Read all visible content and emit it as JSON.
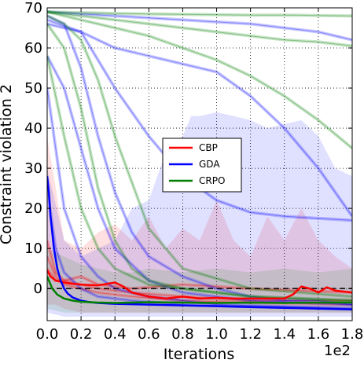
{
  "chart_data": {
    "type": "line",
    "title": "",
    "xlabel": "Iterations",
    "ylabel": "Constraint violation 2",
    "x_offset_text": "1e2",
    "xlim": [
      0,
      1.8
    ],
    "ylim": [
      -8,
      70
    ],
    "x_ticks": [
      "0.0",
      "0.2",
      "0.4",
      "0.6",
      "0.8",
      "1.0",
      "1.2",
      "1.4",
      "1.6",
      "1.8"
    ],
    "y_ticks": [
      "0",
      "10",
      "20",
      "30",
      "40",
      "50",
      "60",
      "70"
    ],
    "grid": true,
    "legend_position": "center",
    "reference_line": {
      "y": 0,
      "style": "dashed",
      "color": "#000000"
    },
    "series": [
      {
        "name": "CBP",
        "color": "#ff0000",
        "mean": {
          "x": [
            0,
            0.02,
            0.05,
            0.1,
            0.15,
            0.2,
            0.3,
            0.4,
            0.45,
            0.5,
            0.6,
            0.7,
            0.8,
            0.9,
            1.0,
            1.1,
            1.2,
            1.3,
            1.4,
            1.45,
            1.5,
            1.55,
            1.6,
            1.65,
            1.7,
            1.8
          ],
          "y": [
            4.5,
            3,
            2,
            1.5,
            1.2,
            1,
            0.8,
            1.5,
            0.5,
            -1,
            -2,
            -2.5,
            -2,
            -2.5,
            -2.3,
            -2.5,
            -2.5,
            -2.5,
            -2.5,
            -1.5,
            0.5,
            0,
            -1,
            0.3,
            -0.5,
            -1
          ]
        },
        "runs": [
          {
            "x": [
              0,
              0.05,
              0.1,
              0.2,
              0.3,
              0.5,
              0.8,
              1.2,
              1.8
            ],
            "y": [
              12,
              4,
              2,
              1,
              0,
              -1,
              -2,
              -3,
              -3
            ]
          },
          {
            "x": [
              0,
              0.05,
              0.1,
              0.2,
              0.3,
              0.5,
              0.8,
              1.2,
              1.8
            ],
            "y": [
              8,
              3,
              1,
              0,
              -1,
              -2,
              -3,
              -3.5,
              -4
            ]
          },
          {
            "x": [
              0,
              0.05,
              0.1,
              0.2,
              0.3,
              0.5,
              0.8,
              1.2,
              1.8
            ],
            "y": [
              5,
              2,
              2,
              3,
              1,
              0,
              1,
              0,
              -1
            ]
          }
        ],
        "band": {
          "x": [
            0,
            0.05,
            0.1,
            0.2,
            0.3,
            0.4,
            0.5,
            0.6,
            0.7,
            0.8,
            0.9,
            1.0,
            1.1,
            1.2,
            1.3,
            1.4,
            1.5,
            1.6,
            1.7,
            1.8
          ],
          "upper": [
            38,
            25,
            12,
            10,
            14,
            16,
            12,
            18,
            10,
            15,
            12,
            22,
            12,
            8,
            18,
            12,
            20,
            12,
            8,
            5
          ],
          "lower": [
            -4,
            -4,
            -5,
            -6,
            -6,
            -6,
            -6,
            -6,
            -6,
            -6,
            -6,
            -6,
            -6,
            -6,
            -6,
            -6,
            -6,
            -6,
            -6,
            -6
          ]
        }
      },
      {
        "name": "GDA",
        "color": "#0000ff",
        "mean": {
          "x": [
            0,
            0.01,
            0.02,
            0.04,
            0.06,
            0.08,
            0.1,
            0.12,
            0.15,
            0.2,
            0.25,
            0.3,
            0.4,
            0.6,
            0.8,
            1.0,
            1.2,
            1.4,
            1.6,
            1.8
          ],
          "y": [
            28,
            24,
            18,
            10,
            5,
            2,
            0,
            -1.2,
            -2.2,
            -3,
            -3.4,
            -3.6,
            -3.8,
            -4,
            -4.2,
            -4.4,
            -4.6,
            -4.8,
            -5,
            -5.2
          ]
        },
        "runs": [
          {
            "x": [
              0,
              0.1,
              0.2,
              0.3,
              0.4,
              0.5,
              0.6,
              0.8,
              1.0,
              1.2,
              1.4,
              1.6,
              1.8
            ],
            "y": [
              68,
              66,
              55,
              38,
              24,
              14,
              8,
              3,
              0,
              -2,
              -3,
              -3,
              -4
            ]
          },
          {
            "x": [
              0,
              0.2,
              0.4,
              0.6,
              0.8,
              1.0,
              1.2,
              1.4,
              1.6,
              1.8
            ],
            "y": [
              66,
              64,
              50,
              38,
              28,
              22,
              19,
              18,
              17.5,
              17
            ]
          },
          {
            "x": [
              0,
              0.2,
              0.4,
              0.6,
              0.8,
              1.0,
              1.2,
              1.4,
              1.6,
              1.8
            ],
            "y": [
              69,
              68.5,
              68,
              67.5,
              67,
              66.5,
              66,
              65,
              64,
              62
            ]
          },
          {
            "x": [
              0,
              0.2,
              0.4,
              0.6,
              0.8,
              1.0,
              1.2,
              1.4,
              1.6,
              1.8
            ],
            "y": [
              67,
              64,
              60,
              58,
              56,
              54,
              48,
              40,
              30,
              18
            ]
          },
          {
            "x": [
              0,
              0.05,
              0.1,
              0.2,
              0.3,
              0.4,
              0.6,
              0.8,
              1.0,
              1.4,
              1.8
            ],
            "y": [
              50,
              35,
              20,
              8,
              3,
              0,
              -2,
              -3,
              -4,
              -4.5,
              -5
            ]
          },
          {
            "x": [
              0,
              0.05,
              0.1,
              0.2,
              0.3,
              0.5,
              0.8,
              1.2,
              1.8
            ],
            "y": [
              25,
              10,
              4,
              0,
              -2,
              -3,
              -4,
              -4.5,
              -5
            ]
          },
          {
            "x": [
              0,
              0.1,
              0.2,
              0.3,
              0.4,
              0.6,
              0.8,
              1.2,
              1.8
            ],
            "y": [
              58,
              50,
              35,
              20,
              10,
              2,
              -1,
              -3,
              -4
            ]
          }
        ],
        "band": {
          "x": [
            0,
            0.1,
            0.2,
            0.3,
            0.4,
            0.5,
            0.6,
            0.7,
            0.8,
            0.85,
            0.9,
            1.0,
            1.1,
            1.2,
            1.3,
            1.4,
            1.5,
            1.6,
            1.7,
            1.8
          ],
          "upper": [
            30,
            12,
            8,
            10,
            12,
            20,
            22,
            34,
            38,
            43,
            43,
            44,
            43,
            42,
            40,
            41,
            42,
            38,
            30,
            28
          ],
          "lower": [
            -6,
            -7,
            -7,
            -7,
            -7,
            -7,
            -7,
            -7,
            -7,
            -7,
            -7,
            -7,
            -7,
            -7,
            -7,
            -7,
            -7,
            -7,
            -7,
            -7
          ]
        }
      },
      {
        "name": "CRPO",
        "color": "#008000",
        "mean": {
          "x": [
            0,
            0.03,
            0.06,
            0.1,
            0.15,
            0.2,
            0.3,
            0.4,
            0.5,
            0.6,
            0.8,
            1.0,
            1.2,
            1.4,
            1.6,
            1.8
          ],
          "y": [
            3,
            0,
            -1.5,
            -2.5,
            -3,
            -3.3,
            -3.5,
            -3.6,
            -3.5,
            -3.4,
            -3.5,
            -3.6,
            -3.5,
            -3.6,
            -3.5,
            -3.5
          ]
        },
        "runs": [
          {
            "x": [
              0,
              0.2,
              0.4,
              0.6,
              0.8,
              1.0,
              1.2,
              1.4,
              1.6,
              1.8
            ],
            "y": [
              69,
              68.8,
              68.6,
              68.5,
              68.4,
              68.3,
              68.2,
              68.2,
              68.1,
              68
            ]
          },
          {
            "x": [
              0,
              0.2,
              0.4,
              0.6,
              0.8,
              1.0,
              1.2,
              1.4,
              1.6,
              1.8
            ],
            "y": [
              69,
              68,
              67,
              66,
              65,
              64,
              63,
              62,
              61.5,
              60.5
            ]
          },
          {
            "x": [
              0,
              0.2,
              0.4,
              0.6,
              0.8,
              1.0,
              1.2,
              1.4,
              1.6,
              1.8
            ],
            "y": [
              69,
              67,
              65,
              63,
              60,
              57,
              53,
              48,
              42,
              35
            ]
          },
          {
            "x": [
              0,
              0.1,
              0.2,
              0.3,
              0.4,
              0.5,
              0.6,
              0.8,
              1.0,
              1.2,
              1.8
            ],
            "y": [
              66,
              60,
              45,
              25,
              12,
              5,
              2,
              0,
              -1,
              -2,
              -3
            ]
          },
          {
            "x": [
              0,
              0.05,
              0.1,
              0.2,
              0.3,
              0.4,
              0.6,
              0.8,
              1.2,
              1.8
            ],
            "y": [
              58,
              48,
              38,
              20,
              10,
              5,
              1,
              0,
              -2,
              -3
            ]
          },
          {
            "x": [
              0,
              0.1,
              0.2,
              0.3,
              0.4,
              0.6,
              0.8,
              1.2,
              1.8
            ],
            "y": [
              68,
              66,
              62,
              52,
              38,
              15,
              5,
              0,
              -2
            ]
          }
        ],
        "band": {
          "x": [
            0,
            0.1,
            0.2,
            0.3,
            0.4,
            0.5,
            0.6,
            0.8,
            1.0,
            1.2,
            1.4,
            1.6,
            1.8
          ],
          "upper": [
            10,
            8,
            6,
            5,
            4,
            4,
            5,
            4,
            5,
            4,
            5,
            4,
            5
          ],
          "lower": [
            -5,
            -6,
            -6,
            -6,
            -6,
            -6,
            -6,
            -6,
            -6,
            -6,
            -6,
            -6,
            -6
          ]
        }
      }
    ]
  }
}
